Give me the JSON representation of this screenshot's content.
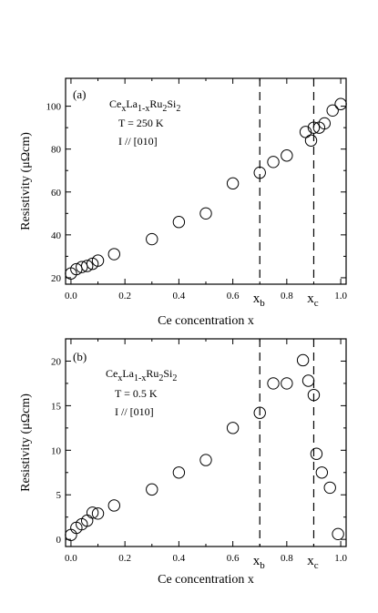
{
  "chart_data": [
    {
      "type": "scatter",
      "panel_label": "(a)",
      "annotation": [
        "Ce",
        "x",
        "La",
        "1-x",
        "Ru",
        "2",
        "Si",
        "2"
      ],
      "condition": "T = 250 K",
      "direction": "I // [010]",
      "xlabel": "Ce concentration x",
      "ylabel": "Resistivity (μΩcm)",
      "xlim": [
        -0.02,
        1.02
      ],
      "ylim": [
        17,
        113
      ],
      "xticks": [
        0.0,
        0.2,
        0.4,
        0.6,
        0.8,
        1.0
      ],
      "xtick_labels": [
        "0.0",
        "0.2",
        "0.4",
        "0.6",
        "0.8",
        "1.0"
      ],
      "yticks": [
        20,
        40,
        60,
        80,
        100
      ],
      "ytick_labels": [
        "20",
        "40",
        "60",
        "80",
        "100"
      ],
      "x_markers": [
        {
          "x": 0.7,
          "label": "x",
          "sub": "b"
        },
        {
          "x": 0.9,
          "label": "x",
          "sub": "c"
        }
      ],
      "series": [
        {
          "marker": "open-circle",
          "x": [
            0.0,
            0.02,
            0.04,
            0.06,
            0.08,
            0.1,
            0.16,
            0.3,
            0.4,
            0.5,
            0.6,
            0.7,
            0.75,
            0.8,
            0.87,
            0.89,
            0.9,
            0.92,
            0.94,
            0.97,
            1.0
          ],
          "y": [
            22,
            24,
            25,
            25.5,
            26.5,
            28,
            31,
            38,
            46,
            50,
            64,
            69,
            74,
            77,
            88,
            84,
            90,
            90,
            92,
            98,
            101
          ]
        }
      ]
    },
    {
      "type": "scatter",
      "panel_label": "(b)",
      "annotation": [
        "Ce",
        "x",
        "La",
        "1-x",
        "Ru",
        "2",
        "Si",
        "2"
      ],
      "condition": "T = 0.5 K",
      "direction": "I // [010]",
      "xlabel": "Ce concentration x",
      "ylabel": "Resistivity (μΩcm)",
      "xlim": [
        -0.02,
        1.02
      ],
      "ylim": [
        -0.8,
        22.5
      ],
      "xticks": [
        0.0,
        0.2,
        0.4,
        0.6,
        0.8,
        1.0
      ],
      "xtick_labels": [
        "0.0",
        "0.2",
        "0.4",
        "0.6",
        "0.8",
        "1.0"
      ],
      "yticks": [
        0,
        5,
        10,
        15,
        20
      ],
      "ytick_labels": [
        "0",
        "5",
        "10",
        "15",
        "20"
      ],
      "x_markers": [
        {
          "x": 0.7,
          "label": "x",
          "sub": "b"
        },
        {
          "x": 0.9,
          "label": "x",
          "sub": "c"
        }
      ],
      "series": [
        {
          "marker": "open-circle",
          "x": [
            0.0,
            0.02,
            0.04,
            0.06,
            0.08,
            0.1,
            0.16,
            0.3,
            0.4,
            0.5,
            0.6,
            0.7,
            0.75,
            0.8,
            0.86,
            0.88,
            0.9,
            0.91,
            0.93,
            0.96,
            0.99
          ],
          "y": [
            0.5,
            1.3,
            1.7,
            2.1,
            3.0,
            2.9,
            3.8,
            5.6,
            7.5,
            8.9,
            12.5,
            14.2,
            17.5,
            17.5,
            20.1,
            17.8,
            16.2,
            9.6,
            7.5,
            5.8,
            0.6
          ]
        }
      ]
    }
  ]
}
